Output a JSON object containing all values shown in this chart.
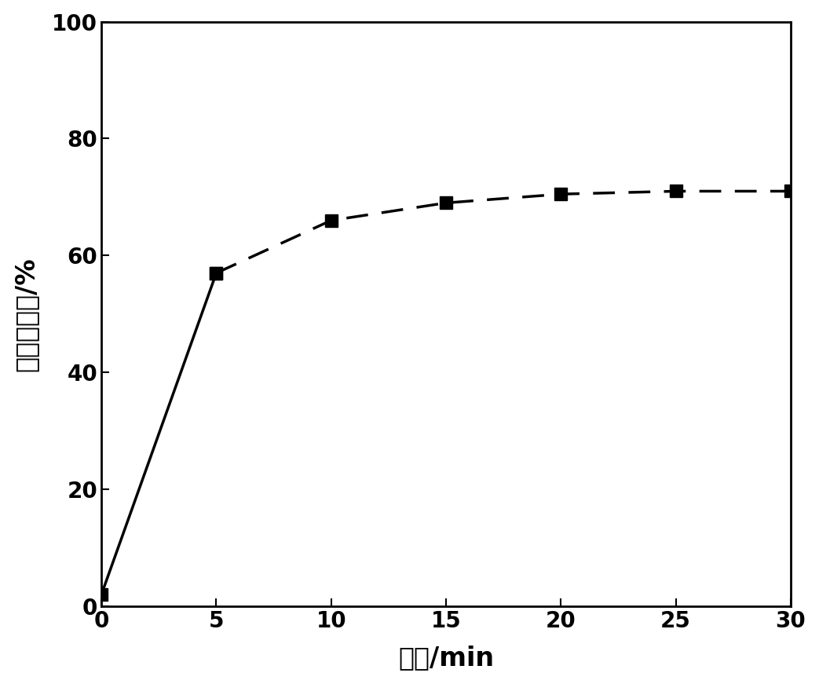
{
  "x": [
    0,
    5,
    10,
    15,
    20,
    25,
    30
  ],
  "y": [
    2,
    57,
    66,
    69,
    70.5,
    71,
    71
  ],
  "xlabel": "时间/min",
  "ylabel": "甲醉去除率/%",
  "xlim": [
    0,
    30
  ],
  "ylim": [
    0,
    100
  ],
  "xticks": [
    0,
    5,
    10,
    15,
    20,
    25,
    30
  ],
  "yticks": [
    0,
    20,
    40,
    60,
    80,
    100
  ],
  "line_color": "#000000",
  "marker": "s",
  "marker_size": 11,
  "line_width": 2.5,
  "xlabel_fontsize": 24,
  "ylabel_fontsize": 24,
  "tick_fontsize": 20,
  "background_color": "#ffffff",
  "solid_segment": [
    0,
    1
  ],
  "dashed_segment": [
    1,
    7
  ],
  "dash_pattern": [
    8,
    5
  ]
}
